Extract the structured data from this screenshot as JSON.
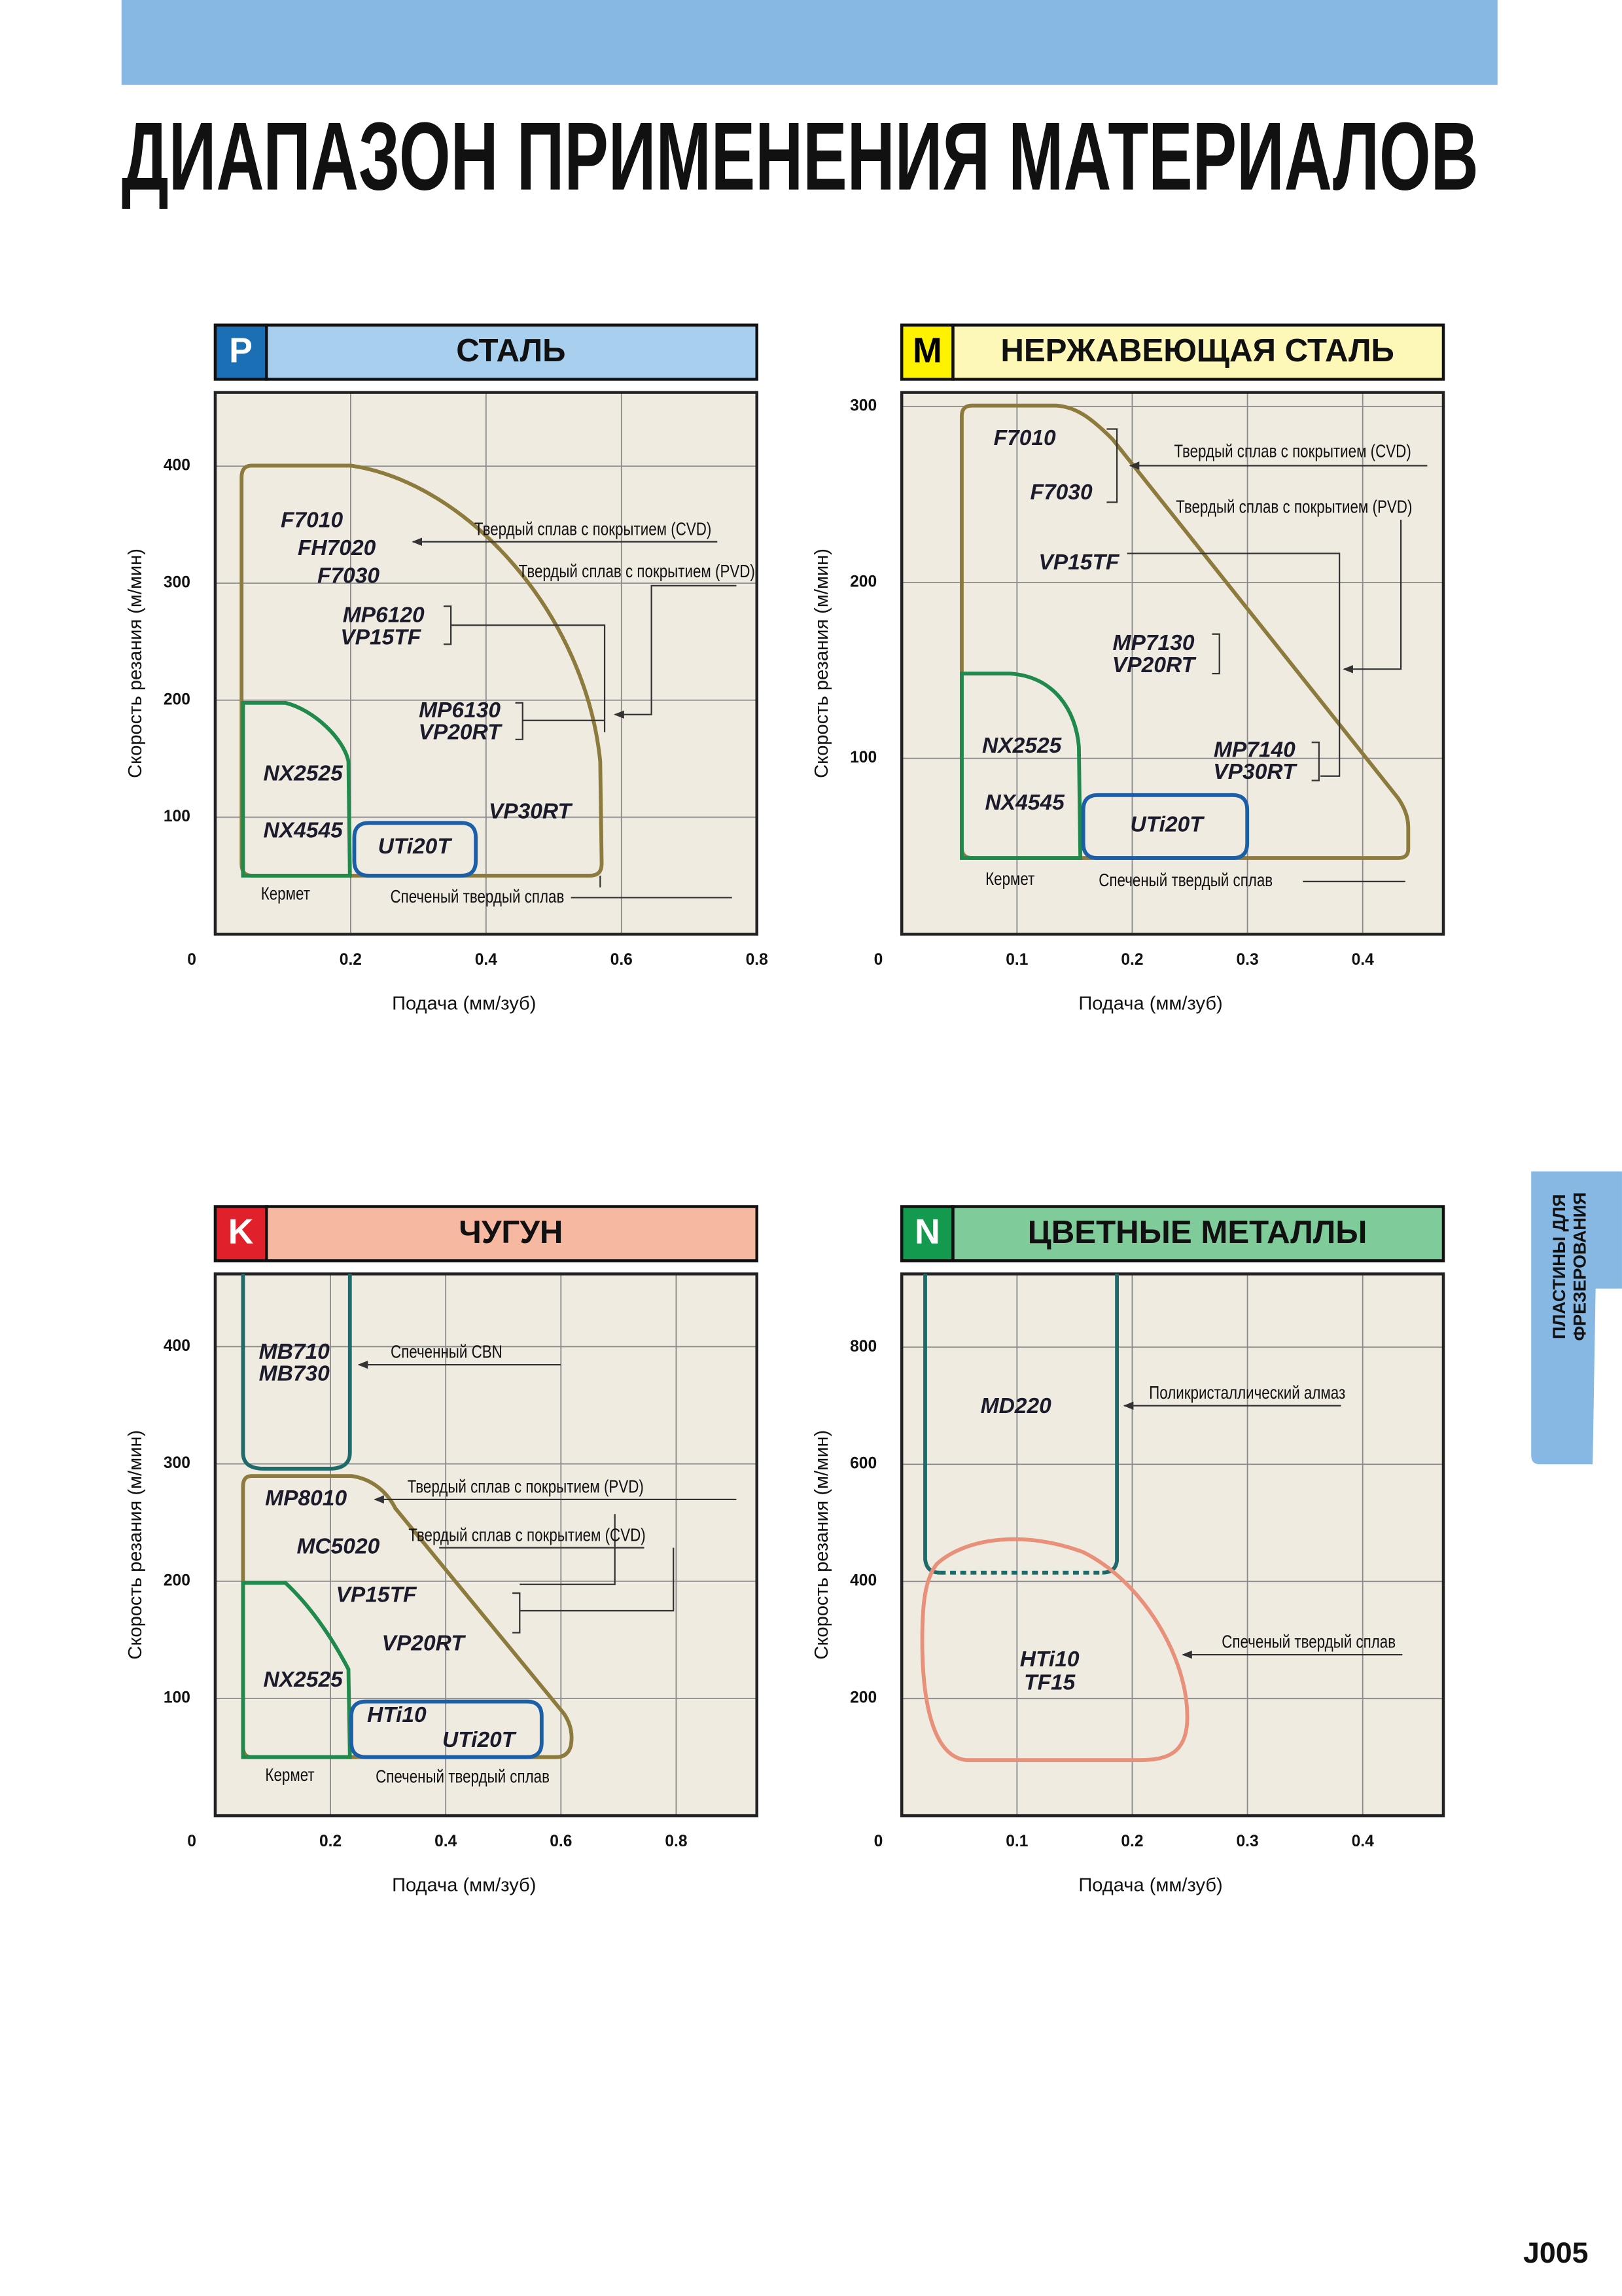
{
  "header": {
    "title": "ДИАПАЗОН ПРИМЕНЕНИЯ МАТЕРИАЛОВ"
  },
  "side_tab": {
    "lines": [
      "ПЛАСТИНЫ ДЛЯ",
      "ФРЕЗЕРОВАНИЯ"
    ]
  },
  "page_number": "J005",
  "chart_data": [
    {
      "type": "region",
      "badge": "P",
      "title": "СТАЛЬ",
      "badge_color": "#1a6fb5",
      "badge_text_color": "#ffffff",
      "title_color": "#a9cfee",
      "x_label": "Подача (мм/зуб)",
      "y_label": "Скорость резания (м/мин)",
      "xlim": [
        0,
        0.8
      ],
      "ylim": [
        0,
        463
      ],
      "xticks": [
        0,
        0.2,
        0.4,
        0.6,
        0.8
      ],
      "yticks": [
        100,
        200,
        300,
        400
      ],
      "grid": true,
      "grades": [
        "F7010",
        "FH7020",
        "F7030",
        "MP6120",
        "VP15TF",
        "MP6130",
        "VP20RT",
        "VP30RT",
        "NX2525",
        "NX4545",
        "UTi20T"
      ],
      "annotations": [
        "Твердый сплав с покрытием (CVD)",
        "Твердый сплав с покрытием (PVD)",
        "Кермет",
        "Спеченый твердый сплав"
      ]
    },
    {
      "type": "region",
      "badge": "M",
      "title": "НЕРЖАВЕЮЩАЯ СТАЛЬ",
      "badge_color": "#fff200",
      "badge_text_color": "#000000",
      "title_color": "#fdf7b8",
      "x_label": "Подача (мм/зуб)",
      "y_label": "Скорость резания (м/мин)",
      "xlim": [
        0,
        0.47
      ],
      "ylim": [
        0,
        308
      ],
      "xticks": [
        0,
        0.1,
        0.2,
        0.3,
        0.4
      ],
      "yticks": [
        100,
        200,
        300
      ],
      "grid": true,
      "grades": [
        "F7010",
        "F7030",
        "VP15TF",
        "MP7130",
        "VP20RT",
        "MP7140",
        "VP30RT",
        "NX2525",
        "NX4545",
        "UTi20T"
      ],
      "annotations": [
        "Твердый сплав с покрытием (CVD)",
        "Твердый сплав с покрытием (PVD)",
        "Кермет",
        "Спеченый твердый сплав"
      ]
    },
    {
      "type": "region",
      "badge": "K",
      "title": "ЧУГУН",
      "badge_color": "#e0202a",
      "badge_text_color": "#ffffff",
      "title_color": "#f6b8a0",
      "x_label": "Подача (мм/зуб)",
      "y_label": "Скорость резания (м/мин)",
      "xlim": [
        0,
        0.94
      ],
      "ylim": [
        0,
        462
      ],
      "xticks": [
        0,
        0.2,
        0.4,
        0.6,
        0.8
      ],
      "yticks": [
        100,
        200,
        300,
        400
      ],
      "grid": true,
      "grades": [
        "MB710",
        "MB730",
        "MP8010",
        "MC5020",
        "VP15TF",
        "VP20RT",
        "NX2525",
        "HTi10",
        "UTi20T"
      ],
      "annotations": [
        "Спеченный CBN",
        "Твердый сплав с покрытием (PVD)",
        "Твердый сплав с покрытием (CVD)",
        "Кермет",
        "Спеченый твердый сплав"
      ]
    },
    {
      "type": "region",
      "badge": "N",
      "title": "ЦВЕТНЫЕ МЕТАЛЛЫ",
      "badge_color": "#149a4f",
      "badge_text_color": "#ffffff",
      "title_color": "#7fcc9a",
      "x_label": "Подача (мм/зуб)",
      "y_label": "Скорость резания (м/мин)",
      "xlim": [
        0,
        0.47
      ],
      "ylim": [
        0,
        925
      ],
      "xticks": [
        0,
        0.1,
        0.2,
        0.3,
        0.4
      ],
      "yticks": [
        200,
        400,
        600,
        800
      ],
      "grid": true,
      "grades": [
        "MD220",
        "HTi10",
        "TF15"
      ],
      "annotations": [
        "Поликристаллический алмаз",
        "Спеченый твердый сплав"
      ]
    }
  ]
}
